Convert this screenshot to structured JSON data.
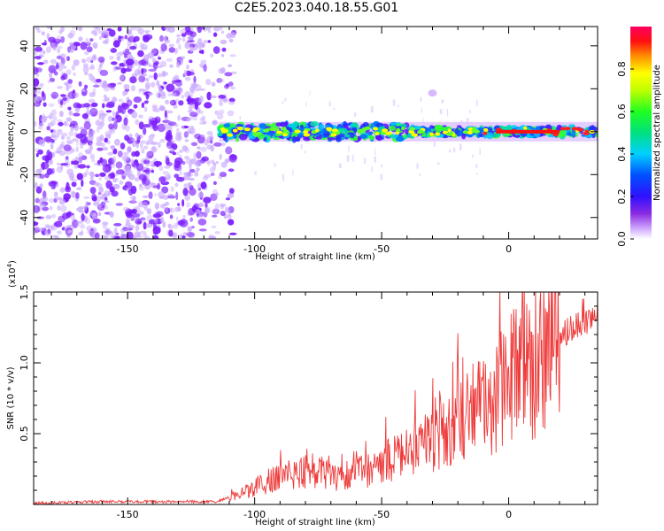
{
  "title": "C2E5.2023.040.18.55.G01",
  "colors": {
    "snr_line": "#ee3a3a",
    "scatter_speckle": "#7b1cff",
    "scatter_light": "#c9a9ff"
  },
  "chart_data": [
    {
      "type": "heatmap",
      "xlabel": "Height of straight line (km)",
      "ylabel": "Frequency (Hz)",
      "xlim": [
        -187,
        35
      ],
      "ylim": [
        -50,
        49
      ],
      "xticks": [
        -150,
        -100,
        -50,
        0
      ],
      "yticks": [
        -40,
        -20,
        0,
        20,
        40
      ],
      "grid": false,
      "colorbar": {
        "label": "Normalized spectral amplitude",
        "range": [
          0.0,
          1.0
        ],
        "ticks": [
          "0.0",
          "0.2",
          "0.4",
          "0.6",
          "0.8"
        ],
        "colormap": "rainbow"
      },
      "noise_region_x": [
        -187,
        -108
      ],
      "signal_trace": {
        "frequency_hz": 0,
        "x_start": -114,
        "x_end": 35,
        "peak_amplitude": 1.0,
        "features": [
          {
            "x": -30,
            "freq": 18,
            "amplitude": 0.15
          }
        ]
      }
    },
    {
      "type": "line",
      "xlabel": "Height of straight line (km)",
      "ylabel": "SNR (10 * v/v)",
      "y_multiplier": "(x10",
      "y_multiplier_exp": "4",
      "y_multiplier_close": ")",
      "xlim": [
        -187,
        35
      ],
      "ylim": [
        0,
        1.5
      ],
      "xticks": [
        -150,
        -100,
        -50,
        0
      ],
      "yticks": [
        0.5,
        1.0,
        1.5
      ],
      "series": [
        {
          "x": [
            -187,
            -160,
            -130,
            -115,
            -105,
            -95,
            -85,
            -75,
            -65,
            -55,
            -45,
            -35,
            -25,
            -15,
            -5,
            5,
            15,
            25,
            35
          ],
          "y": [
            0.01,
            0.02,
            0.02,
            0.02,
            0.08,
            0.16,
            0.22,
            0.24,
            0.2,
            0.24,
            0.33,
            0.42,
            0.55,
            0.65,
            0.76,
            0.95,
            1.1,
            1.25,
            1.35
          ]
        }
      ]
    }
  ]
}
